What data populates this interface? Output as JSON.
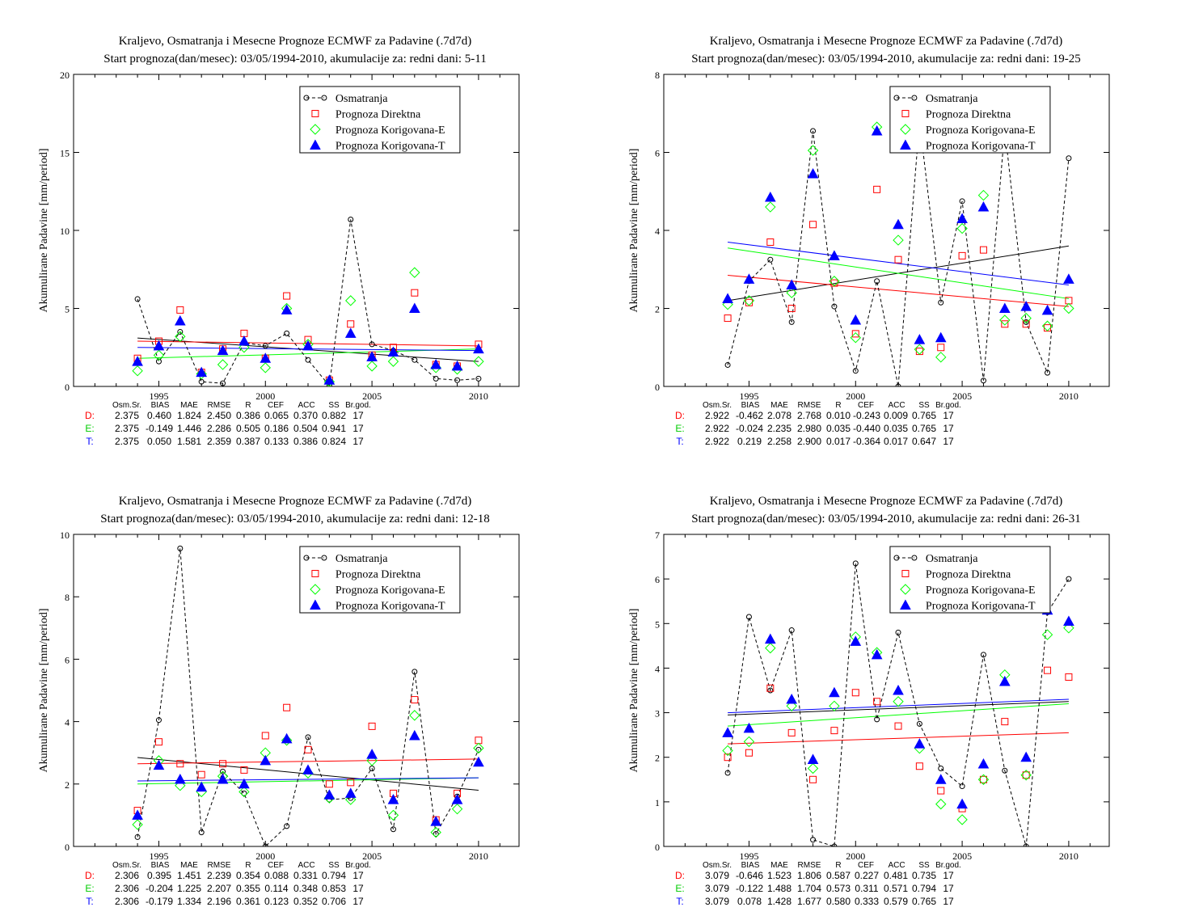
{
  "chart_data": [
    {
      "type": "scatter",
      "title": "Kraljevo, Osmatranja i Mesecne Prognoze ECMWF za Padavine (.7d7d)",
      "subtitle": "Start prognoza(dan/mesec): 03/05/1994-2010, akumulacije za: redni dani: 5-11",
      "ylabel": "Akumulirane Padavine [mm/period]",
      "xlim": [
        1991,
        2011.9
      ],
      "ylim": [
        0,
        20
      ],
      "xticks": [
        1995,
        2000,
        2005,
        2010
      ],
      "yticks": [
        0,
        5,
        10,
        15,
        20
      ],
      "x": [
        1994,
        1995,
        1996,
        1997,
        1998,
        1999,
        2000,
        2001,
        2002,
        2003,
        2004,
        2005,
        2006,
        2007,
        2008,
        2009,
        2010
      ],
      "series": [
        {
          "name": "Osmatranja",
          "color": "#000000",
          "marker": "circle-dashed",
          "values": [
            5.6,
            1.6,
            3.5,
            0.3,
            0.2,
            2.8,
            2.6,
            3.4,
            1.7,
            0.05,
            10.7,
            2.7,
            2.3,
            1.7,
            0.5,
            0.4,
            0.5
          ]
        },
        {
          "name": "Prognoza Direktna",
          "color": "#ff0000",
          "marker": "square",
          "values": [
            1.8,
            2.9,
            4.9,
            0.9,
            2.4,
            3.4,
            1.8,
            5.8,
            3.0,
            0.4,
            4.0,
            2.0,
            2.5,
            6.0,
            1.4,
            1.3,
            2.7
          ]
        },
        {
          "name": "Prognoza Korigovana-E",
          "color": "#00ff00",
          "marker": "diamond",
          "values": [
            1.0,
            2.0,
            3.2,
            0.8,
            1.4,
            2.5,
            1.2,
            5.0,
            2.7,
            0.3,
            5.5,
            1.3,
            1.6,
            7.3,
            1.2,
            1.1,
            1.6
          ]
        },
        {
          "name": "Prognoza Korigovana-T",
          "color": "#0000ff",
          "marker": "triangle",
          "values": [
            1.6,
            2.6,
            4.2,
            0.9,
            2.3,
            2.9,
            1.8,
            4.9,
            2.6,
            0.4,
            3.4,
            1.9,
            2.2,
            5.0,
            1.4,
            1.3,
            2.4
          ]
        }
      ],
      "trends": [
        {
          "color": "#000000",
          "y0": 3.1,
          "y1": 1.6
        },
        {
          "color": "#ff0000",
          "y0": 2.9,
          "y1": 2.6
        },
        {
          "color": "#00ff00",
          "y0": 1.8,
          "y1": 2.4
        },
        {
          "color": "#0000ff",
          "y0": 2.5,
          "y1": 2.3
        }
      ],
      "stats_header": [
        "Osm.Sr.",
        "BIAS",
        "MAE",
        "RMSE",
        "R",
        "CEF",
        "ACC",
        "SS",
        "Br.god."
      ],
      "stats": [
        {
          "label": "D:",
          "color": "#ff0000",
          "values": [
            "2.375",
            "0.460",
            "1.824",
            "2.450",
            "0.386",
            "0.065",
            "0.370",
            "0.882",
            "17"
          ]
        },
        {
          "label": "E:",
          "color": "#00cc00",
          "values": [
            "2.375",
            "-0.149",
            "1.446",
            "2.286",
            "0.505",
            "0.186",
            "0.504",
            "0.941",
            "17"
          ]
        },
        {
          "label": "T:",
          "color": "#0000ff",
          "values": [
            "2.375",
            "0.050",
            "1.581",
            "2.359",
            "0.387",
            "0.133",
            "0.386",
            "0.824",
            "17"
          ]
        }
      ]
    },
    {
      "type": "scatter",
      "title": "Kraljevo, Osmatranja i Mesecne Prognoze ECMWF za Padavine (.7d7d)",
      "subtitle": "Start prognoza(dan/mesec): 03/05/1994-2010, akumulacije za: redni dani: 19-25",
      "ylabel": "Akumulirane Padavine [mm/period]",
      "xlim": [
        1991,
        2011.9
      ],
      "ylim": [
        0,
        8
      ],
      "xticks": [
        1995,
        2000,
        2005,
        2010
      ],
      "yticks": [
        0,
        2,
        4,
        6,
        8
      ],
      "x": [
        1994,
        1995,
        1996,
        1997,
        1998,
        1999,
        2000,
        2001,
        2002,
        2003,
        2004,
        2005,
        2006,
        2007,
        2008,
        2009,
        2010
      ],
      "series": [
        {
          "name": "Osmatranja",
          "color": "#000000",
          "marker": "circle-dashed",
          "values": [
            0.55,
            2.7,
            3.25,
            1.65,
            6.55,
            2.05,
            0.4,
            2.7,
            0.0,
            6.8,
            2.15,
            4.75,
            0.15,
            6.6,
            1.65,
            0.35,
            5.85
          ]
        },
        {
          "name": "Prognoza Direktna",
          "color": "#ff0000",
          "marker": "square",
          "values": [
            1.75,
            2.15,
            3.7,
            2.0,
            4.15,
            2.65,
            1.35,
            5.05,
            3.25,
            0.9,
            1.0,
            3.35,
            3.5,
            1.6,
            1.6,
            1.5,
            2.2
          ]
        },
        {
          "name": "Prognoza Korigovana-E",
          "color": "#00ff00",
          "marker": "diamond",
          "values": [
            2.1,
            2.2,
            4.6,
            2.4,
            6.05,
            2.7,
            1.25,
            6.65,
            3.75,
            0.95,
            0.75,
            4.05,
            4.9,
            1.7,
            1.75,
            1.55,
            2.0
          ]
        },
        {
          "name": "Prognoza Korigovana-T",
          "color": "#0000ff",
          "marker": "triangle",
          "values": [
            2.25,
            2.75,
            4.85,
            2.6,
            5.45,
            3.35,
            1.7,
            6.55,
            4.15,
            1.2,
            1.25,
            4.3,
            4.6,
            2.0,
            2.05,
            1.95,
            2.75
          ]
        }
      ],
      "trends": [
        {
          "color": "#000000",
          "y0": 2.2,
          "y1": 3.6
        },
        {
          "color": "#ff0000",
          "y0": 2.85,
          "y1": 2.05
        },
        {
          "color": "#00ff00",
          "y0": 3.55,
          "y1": 2.25
        },
        {
          "color": "#0000ff",
          "y0": 3.7,
          "y1": 2.6
        }
      ],
      "stats_header": [
        "Osm.Sr.",
        "BIAS",
        "MAE",
        "RMSE",
        "R",
        "CEF",
        "ACC",
        "SS",
        "Br.god."
      ],
      "stats": [
        {
          "label": "D:",
          "color": "#ff0000",
          "values": [
            "2.922",
            "-0.462",
            "2.078",
            "2.768",
            "0.010",
            "-0.243",
            "0.009",
            "0.765",
            "17"
          ]
        },
        {
          "label": "E:",
          "color": "#00cc00",
          "values": [
            "2.922",
            "-0.024",
            "2.235",
            "2.980",
            "0.035",
            "-0.440",
            "0.035",
            "0.765",
            "17"
          ]
        },
        {
          "label": "T:",
          "color": "#0000ff",
          "values": [
            "2.922",
            "0.219",
            "2.258",
            "2.900",
            "0.017",
            "-0.364",
            "0.017",
            "0.647",
            "17"
          ]
        }
      ]
    },
    {
      "type": "scatter",
      "title": "Kraljevo, Osmatranja i Mesecne Prognoze ECMWF za Padavine (.7d7d)",
      "subtitle": "Start prognoza(dan/mesec): 03/05/1994-2010, akumulacije za: redni dani: 12-18",
      "ylabel": "Akumulirane Padavine [mm/period]",
      "xlim": [
        1991,
        2011.9
      ],
      "ylim": [
        0,
        10
      ],
      "xticks": [
        1995,
        2000,
        2005,
        2010
      ],
      "yticks": [
        0,
        2,
        4,
        6,
        8,
        10
      ],
      "x": [
        1994,
        1995,
        1996,
        1997,
        1998,
        1999,
        2000,
        2001,
        2002,
        2003,
        2004,
        2005,
        2006,
        2007,
        2008,
        2009,
        2010
      ],
      "series": [
        {
          "name": "Osmatranja",
          "color": "#000000",
          "marker": "circle-dashed",
          "values": [
            0.3,
            4.05,
            9.55,
            0.45,
            2.4,
            1.7,
            0.0,
            0.65,
            3.5,
            1.5,
            1.55,
            2.5,
            0.55,
            5.6,
            0.4,
            1.6,
            3.1
          ]
        },
        {
          "name": "Prognoza Direktna",
          "color": "#ff0000",
          "marker": "square",
          "values": [
            1.15,
            3.35,
            2.65,
            2.3,
            2.65,
            2.45,
            3.55,
            4.45,
            3.1,
            2.0,
            2.05,
            3.85,
            1.7,
            4.7,
            0.85,
            1.7,
            3.4
          ]
        },
        {
          "name": "Prognoza Korigovana-E",
          "color": "#00ff00",
          "marker": "diamond",
          "values": [
            0.7,
            2.75,
            1.95,
            1.75,
            2.25,
            1.75,
            3.0,
            3.4,
            2.35,
            1.55,
            1.5,
            2.75,
            1.0,
            4.2,
            0.45,
            1.2,
            3.15
          ]
        },
        {
          "name": "Prognoza Korigovana-T",
          "color": "#0000ff",
          "marker": "triangle",
          "values": [
            1.0,
            2.6,
            2.15,
            1.9,
            2.15,
            2.0,
            2.75,
            3.45,
            2.45,
            1.65,
            1.7,
            2.95,
            1.5,
            3.55,
            0.8,
            1.5,
            2.7
          ]
        }
      ],
      "trends": [
        {
          "color": "#000000",
          "y0": 2.85,
          "y1": 1.8
        },
        {
          "color": "#ff0000",
          "y0": 2.65,
          "y1": 2.8
        },
        {
          "color": "#00ff00",
          "y0": 2.0,
          "y1": 2.2
        },
        {
          "color": "#0000ff",
          "y0": 2.1,
          "y1": 2.2
        }
      ],
      "stats_header": [
        "Osm.Sr.",
        "BIAS",
        "MAE",
        "RMSE",
        "R",
        "CEF",
        "ACC",
        "SS",
        "Br.god."
      ],
      "stats": [
        {
          "label": "D:",
          "color": "#ff0000",
          "values": [
            "2.306",
            "0.395",
            "1.451",
            "2.239",
            "0.354",
            "0.088",
            "0.331",
            "0.794",
            "17"
          ]
        },
        {
          "label": "E:",
          "color": "#00cc00",
          "values": [
            "2.306",
            "-0.204",
            "1.225",
            "2.207",
            "0.355",
            "0.114",
            "0.348",
            "0.853",
            "17"
          ]
        },
        {
          "label": "T:",
          "color": "#0000ff",
          "values": [
            "2.306",
            "-0.179",
            "1.334",
            "2.196",
            "0.361",
            "0.123",
            "0.352",
            "0.706",
            "17"
          ]
        }
      ]
    },
    {
      "type": "scatter",
      "title": "Kraljevo, Osmatranja i Mesecne Prognoze ECMWF za Padavine (.7d7d)",
      "subtitle": "Start prognoza(dan/mesec): 03/05/1994-2010, akumulacije za: redni dani: 26-31",
      "ylabel": "Akumulirane Padavine [mm/period]",
      "xlim": [
        1991,
        2011.9
      ],
      "ylim": [
        0,
        7
      ],
      "xticks": [
        1995,
        2000,
        2005,
        2010
      ],
      "yticks": [
        0,
        1,
        2,
        3,
        4,
        5,
        6,
        7
      ],
      "x": [
        1994,
        1995,
        1996,
        1997,
        1998,
        1999,
        2000,
        2001,
        2002,
        2003,
        2004,
        2005,
        2006,
        2007,
        2008,
        2009,
        2010
      ],
      "series": [
        {
          "name": "Osmatranja",
          "color": "#000000",
          "marker": "circle-dashed",
          "values": [
            1.65,
            5.15,
            3.5,
            4.85,
            0.15,
            0.0,
            6.35,
            2.85,
            4.8,
            2.75,
            1.75,
            1.35,
            4.3,
            1.7,
            0.0,
            5.25,
            6.0
          ]
        },
        {
          "name": "Prognoza Direktna",
          "color": "#ff0000",
          "marker": "square",
          "values": [
            2.0,
            2.1,
            3.55,
            2.55,
            1.5,
            2.6,
            3.45,
            3.25,
            2.7,
            1.8,
            1.25,
            0.85,
            1.5,
            2.8,
            1.6,
            3.95,
            3.8
          ]
        },
        {
          "name": "Prognoza Korigovana-E",
          "color": "#00ff00",
          "marker": "diamond",
          "values": [
            2.15,
            2.35,
            4.45,
            3.15,
            1.75,
            3.15,
            4.7,
            4.35,
            3.25,
            2.2,
            0.95,
            0.6,
            1.5,
            3.85,
            1.6,
            4.75,
            4.9
          ]
        },
        {
          "name": "Prognoza Korigovana-T",
          "color": "#0000ff",
          "marker": "triangle",
          "values": [
            2.55,
            2.65,
            4.65,
            3.3,
            1.95,
            3.45,
            4.6,
            4.3,
            3.5,
            2.3,
            1.5,
            0.95,
            1.85,
            3.7,
            2.0,
            5.3,
            5.05
          ]
        }
      ],
      "trends": [
        {
          "color": "#000000",
          "y0": 2.95,
          "y1": 3.25
        },
        {
          "color": "#ff0000",
          "y0": 2.3,
          "y1": 2.55
        },
        {
          "color": "#00ff00",
          "y0": 2.7,
          "y1": 3.2
        },
        {
          "color": "#0000ff",
          "y0": 3.0,
          "y1": 3.3
        }
      ],
      "stats_header": [
        "Osm.Sr.",
        "BIAS",
        "MAE",
        "RMSE",
        "R",
        "CEF",
        "ACC",
        "SS",
        "Br.god."
      ],
      "stats": [
        {
          "label": "D:",
          "color": "#ff0000",
          "values": [
            "3.079",
            "-0.646",
            "1.523",
            "1.806",
            "0.587",
            "0.227",
            "0.481",
            "0.735",
            "17"
          ]
        },
        {
          "label": "E:",
          "color": "#00cc00",
          "values": [
            "3.079",
            "-0.122",
            "1.488",
            "1.704",
            "0.573",
            "0.311",
            "0.571",
            "0.794",
            "17"
          ]
        },
        {
          "label": "T:",
          "color": "#0000ff",
          "values": [
            "3.079",
            "0.078",
            "1.428",
            "1.677",
            "0.580",
            "0.333",
            "0.579",
            "0.765",
            "17"
          ]
        }
      ]
    }
  ]
}
